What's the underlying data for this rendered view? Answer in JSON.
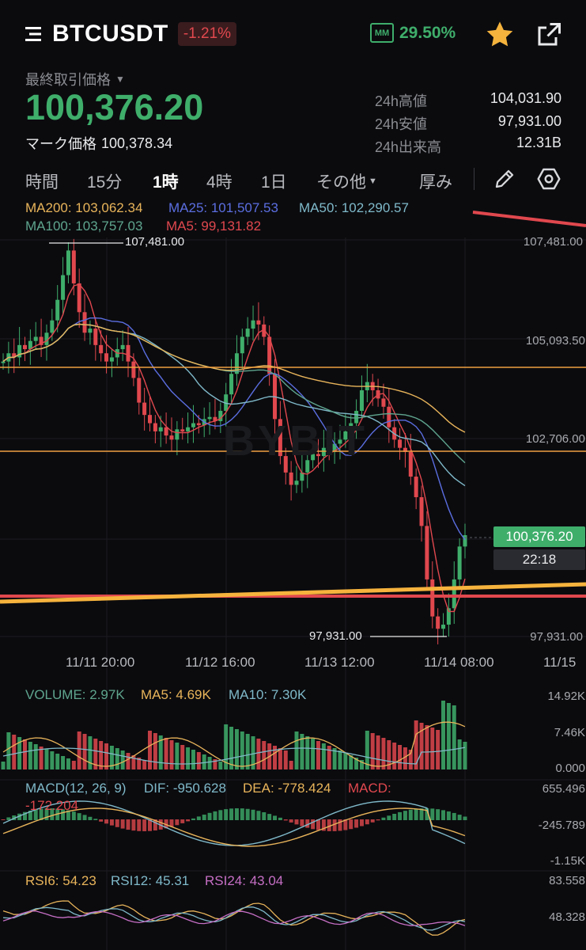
{
  "header": {
    "symbol": "BTCUSDT",
    "change_pct": "-1.21%",
    "mm_label": "MM",
    "mm_value": "29.50%",
    "icons": [
      "menu-icon",
      "star-icon",
      "share-icon"
    ]
  },
  "price": {
    "last_label": "最終取引価格",
    "last": "100,376.20",
    "mark_label": "マーク価格",
    "mark": "100,378.34"
  },
  "stats": {
    "high_label": "24h高値",
    "high": "104,031.90",
    "low_label": "24h安値",
    "low": "97,931.00",
    "vol_label": "24h出来高",
    "vol": "12.31B"
  },
  "timeframes": {
    "items": [
      "時間",
      "15分",
      "1時",
      "4時",
      "1日"
    ],
    "active": "1時",
    "more": "その他",
    "depth": "厚み",
    "tool_icons": [
      "pencil-icon",
      "settings-hex-icon"
    ]
  },
  "ma_legend": {
    "ma200": "MA200: 103,062.34",
    "ma25": "MA25: 101,507.53",
    "ma50": "MA50: 102,290.57",
    "ma100": "MA100: 103,757.03",
    "ma5": "MA5: 99,131.82"
  },
  "main_chart": {
    "y_ticks": [
      "107,481.00",
      "105,093.50",
      "102,706.00",
      "97,931.00"
    ],
    "high_marker": "107,481.00",
    "low_marker": "97,931.00",
    "current_price_tag": "100,376.20",
    "countdown": "22:18",
    "x_ticks": [
      "11/11 20:00",
      "11/12 16:00",
      "11/13 12:00",
      "11/14 08:00",
      "11/15"
    ],
    "watermark": "BYBIT",
    "colors": {
      "up": "#3fae6b",
      "down": "#e0484e",
      "ma5": "#e0484e",
      "ma25": "#5b6ee0",
      "ma50": "#7fb9c9",
      "ma100": "#5fa58e",
      "ma200": "#e8b45a",
      "hline": "#f0a040"
    }
  },
  "volume": {
    "legend_volume": "VOLUME: 2.97K",
    "legend_ma5": "MA5: 4.69K",
    "legend_ma10": "MA10: 7.30K",
    "y_ticks": [
      "14.92K",
      "7.46K",
      "0.000"
    ]
  },
  "macd": {
    "legend_name": "MACD(12, 26, 9)",
    "legend_dif": "DIF: -950.628",
    "legend_dea": "DEA: -778.424",
    "legend_macd": "MACD:",
    "legend_macd_val": "-172.204",
    "y_ticks": [
      "655.496",
      "-245.789",
      "-1.15K"
    ]
  },
  "rsi": {
    "legend_rsi6": "RSI6: 54.23",
    "legend_rsi12": "RSI12: 45.31",
    "legend_rsi24": "RSI24: 43.04",
    "y_ticks": [
      "83.558",
      "48.328"
    ]
  }
}
